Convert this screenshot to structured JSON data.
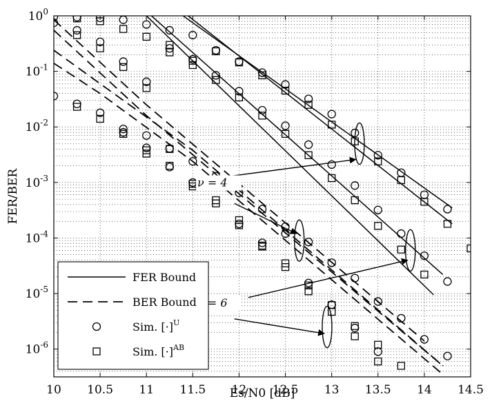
{
  "chart_data": {
    "type": "line",
    "xlabel": "Es/N0 [dB]",
    "ylabel": "FER/BER",
    "xlim": [
      10,
      14.5
    ],
    "ylim_log10": [
      -6.5,
      0
    ],
    "log_y": true,
    "grid": true,
    "x_ticks": [
      "10",
      "10.5",
      "11",
      "11.5",
      "12",
      "12.5",
      "13",
      "13.5",
      "14",
      "14.5"
    ],
    "y_ticks": [
      {
        "base": "10",
        "exp": "0"
      },
      {
        "base": "10",
        "exp": "-1"
      },
      {
        "base": "10",
        "exp": "-2"
      },
      {
        "base": "10",
        "exp": "-3"
      },
      {
        "base": "10",
        "exp": "-4"
      },
      {
        "base": "10",
        "exp": "-5"
      },
      {
        "base": "10",
        "exp": "-6"
      }
    ],
    "legend": {
      "placement": "bottom-left",
      "entries": [
        {
          "label": "FER Bound",
          "style": "solid"
        },
        {
          "label": "BER Bound",
          "style": "dashed"
        },
        {
          "label": "Sim. [·]",
          "sup": "U",
          "marker": "circle"
        },
        {
          "label": "Sim. [·]",
          "sup": "AB",
          "marker": "square"
        }
      ]
    },
    "annotations": [
      {
        "text": "ν = 4",
        "x": 11.55,
        "y": 0.00085
      },
      {
        "text": "ν = 6",
        "x": 11.55,
        "y": 5.8e-06
      }
    ],
    "series": [
      {
        "style": "solid",
        "x": [
          11.3,
          14.3
        ],
        "y": [
          1.3,
          0.00035
        ]
      },
      {
        "style": "solid",
        "x": [
          11.45,
          14.3
        ],
        "y": [
          1.0,
          0.00018
        ]
      },
      {
        "style": "solid",
        "x": [
          11.0,
          14.2
        ],
        "y": [
          1.2,
          2.2e-05
        ]
      },
      {
        "style": "solid",
        "x": [
          11.0,
          14.1
        ],
        "y": [
          1.0,
          9.5e-06
        ]
      },
      {
        "style": "dashed",
        "x": [
          10.0,
          11.0,
          14.0
        ],
        "y": [
          0.85,
          0.025,
          1.4e-06
        ]
      },
      {
        "style": "dashed",
        "x": [
          10.0,
          11.0,
          14.2
        ],
        "y": [
          0.55,
          0.016,
          5e-07
        ]
      },
      {
        "style": "dashed",
        "x": [
          10.0,
          10.5,
          11.5,
          14.2
        ],
        "y": [
          0.24,
          0.06,
          0.0038,
          5e-07
        ]
      },
      {
        "style": "dashed",
        "x": [
          10.0,
          10.5,
          11.5,
          14.2
        ],
        "y": [
          0.14,
          0.04,
          0.0024,
          3.5e-07
        ]
      },
      {
        "marker": "circle",
        "x": [
          10.0,
          10.25,
          10.5,
          10.75,
          11.0,
          11.25,
          11.5,
          11.75,
          12.0,
          12.25,
          12.5,
          12.75,
          13.0,
          13.25,
          13.5,
          13.75,
          14.0,
          14.25
        ],
        "y": [
          0.96,
          0.95,
          0.92,
          0.85,
          0.7,
          0.55,
          0.45,
          0.24,
          0.15,
          0.095,
          0.058,
          0.032,
          0.017,
          0.0078,
          0.0031,
          0.0015,
          0.0006,
          0.00033
        ]
      },
      {
        "marker": "square",
        "x": [
          10.25,
          10.5,
          10.75,
          11.0,
          11.25,
          11.5,
          11.75,
          12.0,
          12.25,
          12.5,
          12.75,
          13.0,
          13.25,
          13.5,
          13.75,
          14.0,
          14.25,
          14.5
        ],
        "y": [
          0.9,
          0.8,
          0.58,
          0.42,
          0.3,
          0.155,
          0.23,
          0.145,
          0.085,
          0.045,
          0.025,
          0.011,
          0.0055,
          0.0024,
          0.0011,
          0.00045,
          0.00018,
          6.5e-05
        ]
      },
      {
        "marker": "circle",
        "x": [
          10.0,
          10.25,
          10.5,
          10.75,
          11.0,
          11.25,
          11.5,
          11.75,
          12.0,
          12.25,
          12.5,
          12.75,
          13.0,
          13.25,
          13.5,
          13.75,
          14.0,
          14.25
        ],
        "y": [
          0.75,
          0.55,
          0.34,
          0.15,
          0.065,
          0.26,
          0.165,
          0.085,
          0.044,
          0.02,
          0.0105,
          0.0048,
          0.0021,
          0.00088,
          0.00032,
          0.00012,
          4.8e-05,
          1.65e-05
        ]
      },
      {
        "marker": "square",
        "x": [
          10.25,
          10.5,
          10.75,
          11.0,
          11.25,
          11.5,
          11.75,
          12.0,
          12.25,
          12.5,
          12.75,
          13.0,
          13.25,
          13.5,
          13.75,
          14.0
        ],
        "y": [
          0.45,
          0.26,
          0.12,
          0.05,
          0.22,
          0.13,
          0.07,
          0.034,
          0.016,
          0.0075,
          0.0031,
          0.0012,
          0.00048,
          0.000165,
          6.2e-05,
          2.2e-05
        ]
      },
      {
        "marker": "circle",
        "x": [
          10.0,
          10.25,
          10.5,
          10.75,
          11.0,
          11.25,
          11.5,
          11.75,
          12.0,
          12.25,
          12.5,
          12.75,
          13.0,
          13.25,
          13.5,
          13.75,
          14.0,
          14.25
        ],
        "y": [
          0.036,
          0.026,
          0.018,
          0.0092,
          0.007,
          0.0041,
          0.0024,
          0.0013,
          0.00065,
          0.00033,
          0.00016,
          8.5e-05,
          3.6e-05,
          1.9e-05,
          7.2e-06,
          3.6e-06,
          1.5e-06,
          7.5e-07
        ]
      },
      {
        "marker": "square",
        "x": [
          10.25,
          10.5,
          10.75,
          11.0,
          11.25,
          11.5,
          11.75,
          12.0,
          12.25,
          12.5,
          12.75,
          13.0,
          13.25,
          13.5,
          13.75,
          14.0
        ],
        "y": [
          0.023,
          0.014,
          0.0075,
          0.0038,
          0.002,
          0.00095,
          0.00048,
          0.00021,
          7.3e-05,
          3.5e-05,
          1.4e-05,
          6.2e-06,
          2.6e-06,
          1.2e-06,
          5e-07,
          2e-07
        ]
      },
      {
        "marker": "circle",
        "x": [
          10.75,
          11.0,
          11.25,
          11.5,
          11.75,
          12.0,
          12.25,
          12.5,
          12.75,
          13.0,
          13.25,
          13.5
        ],
        "y": [
          0.008,
          0.0042,
          0.0019,
          0.001,
          0.0009,
          0.00018,
          8.2e-05,
          0.00012,
          1.55e-05,
          6.3e-06,
          2.4e-06,
          9e-07
        ]
      },
      {
        "marker": "square",
        "x": [
          11.0,
          11.25,
          11.5,
          11.75,
          12.0,
          12.25,
          12.5,
          12.75,
          13.0,
          13.25,
          13.5
        ],
        "y": [
          0.0033,
          0.004,
          0.00085,
          0.00042,
          0.00017,
          7e-05,
          3e-05,
          1.1e-05,
          4.7e-06,
          1.7e-06,
          6e-07
        ]
      }
    ]
  }
}
